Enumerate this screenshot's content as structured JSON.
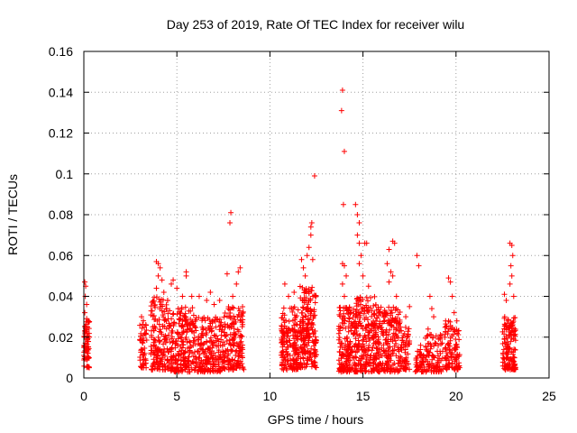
{
  "chart_data": {
    "type": "scatter",
    "title": "Day 253 of 2019, Rate Of TEC Index for receiver wilu",
    "xlabel": "GPS time / hours",
    "ylabel": "ROTI / TECUs",
    "xlim": [
      0,
      25
    ],
    "ylim": [
      0,
      0.16
    ],
    "xticks": [
      0,
      5,
      10,
      15,
      20,
      25
    ],
    "yticks": [
      0,
      0.02,
      0.04,
      0.06,
      0.08,
      0.1,
      0.12,
      0.14,
      0.16
    ],
    "xtick_labels": [
      "0",
      "5",
      "10",
      "15",
      "20",
      "25"
    ],
    "ytick_labels": [
      "0",
      "0.02",
      "0.04",
      "0.06",
      "0.08",
      "0.1",
      "0.12",
      "0.14",
      "0.16"
    ],
    "grid": true,
    "marker": "+",
    "color": "#ff0000",
    "clusters": [
      {
        "x": [
          0.0,
          0.3
        ],
        "y": [
          0.005,
          0.03
        ],
        "count": 70
      },
      {
        "x": [
          3.0,
          3.4
        ],
        "y": [
          0.005,
          0.027
        ],
        "count": 50
      },
      {
        "x": [
          3.6,
          4.6
        ],
        "y": [
          0.004,
          0.04
        ],
        "count": 160
      },
      {
        "x": [
          4.6,
          6.0
        ],
        "y": [
          0.003,
          0.035
        ],
        "count": 220
      },
      {
        "x": [
          6.0,
          7.5
        ],
        "y": [
          0.003,
          0.03
        ],
        "count": 220
      },
      {
        "x": [
          7.5,
          8.6
        ],
        "y": [
          0.004,
          0.035
        ],
        "count": 170
      },
      {
        "x": [
          10.6,
          11.6
        ],
        "y": [
          0.004,
          0.035
        ],
        "count": 170
      },
      {
        "x": [
          11.6,
          12.5
        ],
        "y": [
          0.005,
          0.045
        ],
        "count": 200
      },
      {
        "x": [
          13.7,
          14.6
        ],
        "y": [
          0.003,
          0.035
        ],
        "count": 180
      },
      {
        "x": [
          14.6,
          15.8
        ],
        "y": [
          0.003,
          0.04
        ],
        "count": 220
      },
      {
        "x": [
          15.8,
          17.0
        ],
        "y": [
          0.003,
          0.035
        ],
        "count": 200
      },
      {
        "x": [
          17.0,
          17.5
        ],
        "y": [
          0.004,
          0.025
        ],
        "count": 60
      },
      {
        "x": [
          17.8,
          18.3
        ],
        "y": [
          0.003,
          0.014
        ],
        "count": 50
      },
      {
        "x": [
          18.3,
          19.3
        ],
        "y": [
          0.003,
          0.022
        ],
        "count": 90
      },
      {
        "x": [
          19.4,
          20.2
        ],
        "y": [
          0.004,
          0.028
        ],
        "count": 110
      },
      {
        "x": [
          22.5,
          23.2
        ],
        "y": [
          0.004,
          0.03
        ],
        "count": 140
      }
    ],
    "points": [
      [
        0.05,
        0.047
      ],
      [
        0.1,
        0.045
      ],
      [
        0.08,
        0.04
      ],
      [
        0.15,
        0.036
      ],
      [
        0.05,
        0.032
      ],
      [
        3.1,
        0.03
      ],
      [
        3.2,
        0.028
      ],
      [
        3.9,
        0.057
      ],
      [
        4.0,
        0.056
      ],
      [
        4.1,
        0.054
      ],
      [
        4.0,
        0.05
      ],
      [
        4.2,
        0.048
      ],
      [
        3.9,
        0.044
      ],
      [
        4.3,
        0.042
      ],
      [
        4.5,
        0.038
      ],
      [
        4.7,
        0.046
      ],
      [
        4.8,
        0.048
      ],
      [
        5.0,
        0.044
      ],
      [
        5.3,
        0.04
      ],
      [
        5.5,
        0.052
      ],
      [
        5.5,
        0.05
      ],
      [
        5.8,
        0.04
      ],
      [
        6.2,
        0.04
      ],
      [
        6.6,
        0.038
      ],
      [
        6.8,
        0.042
      ],
      [
        7.0,
        0.036
      ],
      [
        7.3,
        0.038
      ],
      [
        7.7,
        0.051
      ],
      [
        7.9,
        0.081
      ],
      [
        7.85,
        0.076
      ],
      [
        8.0,
        0.04
      ],
      [
        8.3,
        0.052
      ],
      [
        8.4,
        0.054
      ],
      [
        8.2,
        0.046
      ],
      [
        10.8,
        0.046
      ],
      [
        11.0,
        0.04
      ],
      [
        11.3,
        0.042
      ],
      [
        11.7,
        0.058
      ],
      [
        11.8,
        0.054
      ],
      [
        11.9,
        0.05
      ],
      [
        12.0,
        0.06
      ],
      [
        12.1,
        0.064
      ],
      [
        12.2,
        0.074
      ],
      [
        12.25,
        0.076
      ],
      [
        12.2,
        0.07
      ],
      [
        12.3,
        0.058
      ],
      [
        12.4,
        0.099
      ],
      [
        13.9,
        0.141
      ],
      [
        13.85,
        0.131
      ],
      [
        14.0,
        0.111
      ],
      [
        13.95,
        0.085
      ],
      [
        13.9,
        0.056
      ],
      [
        14.0,
        0.055
      ],
      [
        14.1,
        0.05
      ],
      [
        13.9,
        0.046
      ],
      [
        14.0,
        0.04
      ],
      [
        14.6,
        0.085
      ],
      [
        14.7,
        0.08
      ],
      [
        14.8,
        0.076
      ],
      [
        14.7,
        0.07
      ],
      [
        14.8,
        0.066
      ],
      [
        14.9,
        0.06
      ],
      [
        14.8,
        0.056
      ],
      [
        15.1,
        0.066
      ],
      [
        15.2,
        0.066
      ],
      [
        15.0,
        0.05
      ],
      [
        15.3,
        0.045
      ],
      [
        16.3,
        0.056
      ],
      [
        16.4,
        0.063
      ],
      [
        16.6,
        0.067
      ],
      [
        16.7,
        0.066
      ],
      [
        16.5,
        0.052
      ],
      [
        16.6,
        0.05
      ],
      [
        16.4,
        0.047
      ],
      [
        16.8,
        0.04
      ],
      [
        17.3,
        0.03
      ],
      [
        17.5,
        0.035
      ],
      [
        17.9,
        0.06
      ],
      [
        18.0,
        0.055
      ],
      [
        18.1,
        0.016
      ],
      [
        18.6,
        0.04
      ],
      [
        18.7,
        0.034
      ],
      [
        18.8,
        0.03
      ],
      [
        18.5,
        0.024
      ],
      [
        19.6,
        0.049
      ],
      [
        19.7,
        0.047
      ],
      [
        19.8,
        0.04
      ],
      [
        19.9,
        0.032
      ],
      [
        22.6,
        0.041
      ],
      [
        22.7,
        0.038
      ],
      [
        22.9,
        0.066
      ],
      [
        23.0,
        0.065
      ],
      [
        23.05,
        0.06
      ],
      [
        22.95,
        0.055
      ],
      [
        23.0,
        0.05
      ],
      [
        22.9,
        0.046
      ],
      [
        23.1,
        0.04
      ]
    ]
  }
}
